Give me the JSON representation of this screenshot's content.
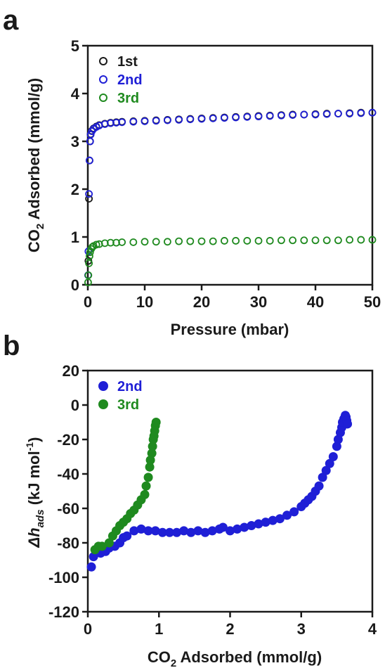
{
  "chart_data": [
    {
      "panel": "a",
      "type": "scatter",
      "xlabel": "Pressure (mbar)",
      "ylabel_main": "CO",
      "ylabel_sub": "2",
      "ylabel_rest": " Adsorbed (mmol/g)",
      "xlim": [
        0,
        50
      ],
      "ylim": [
        0,
        5
      ],
      "xticks": [
        "0",
        "10",
        "20",
        "30",
        "40",
        "50"
      ],
      "yticks": [
        "0",
        "1",
        "2",
        "3",
        "4",
        "5"
      ],
      "legend_position": "top-left",
      "marker": "open-circle",
      "series": [
        {
          "name": "1st",
          "color": "#1a1a1a",
          "points": [
            [
              0.1,
              0.5
            ],
            [
              0.2,
              1.8
            ],
            [
              0.3,
              2.6
            ],
            [
              0.4,
              3.0
            ],
            [
              0.5,
              3.15
            ],
            [
              0.7,
              3.22
            ],
            [
              1,
              3.27
            ],
            [
              1.5,
              3.31
            ],
            [
              2,
              3.34
            ],
            [
              3,
              3.37
            ],
            [
              4,
              3.39
            ],
            [
              5,
              3.4
            ],
            [
              6,
              3.41
            ],
            [
              8,
              3.42
            ],
            [
              10,
              3.43
            ],
            [
              12,
              3.44
            ],
            [
              14,
              3.45
            ],
            [
              16,
              3.46
            ],
            [
              18,
              3.47
            ],
            [
              20,
              3.48
            ],
            [
              22,
              3.49
            ],
            [
              24,
              3.5
            ],
            [
              26,
              3.51
            ],
            [
              28,
              3.52
            ],
            [
              30,
              3.53
            ],
            [
              32,
              3.54
            ],
            [
              34,
              3.55
            ],
            [
              36,
              3.56
            ],
            [
              38,
              3.56
            ],
            [
              40,
              3.57
            ],
            [
              42,
              3.58
            ],
            [
              44,
              3.58
            ],
            [
              46,
              3.59
            ],
            [
              48,
              3.6
            ],
            [
              50,
              3.6
            ]
          ]
        },
        {
          "name": "2nd",
          "color": "#1f1fd6",
          "points": [
            [
              0.05,
              0.2
            ],
            [
              0.1,
              0.7
            ],
            [
              0.2,
              1.9
            ],
            [
              0.3,
              2.6
            ],
            [
              0.4,
              3.0
            ],
            [
              0.5,
              3.14
            ],
            [
              0.7,
              3.21
            ],
            [
              1,
              3.26
            ],
            [
              1.5,
              3.3
            ],
            [
              2,
              3.33
            ],
            [
              3,
              3.36
            ],
            [
              4,
              3.38
            ],
            [
              5,
              3.39
            ],
            [
              6,
              3.4
            ],
            [
              8,
              3.41
            ],
            [
              10,
              3.42
            ],
            [
              12,
              3.43
            ],
            [
              14,
              3.44
            ],
            [
              16,
              3.45
            ],
            [
              18,
              3.46
            ],
            [
              20,
              3.47
            ],
            [
              22,
              3.48
            ],
            [
              24,
              3.49
            ],
            [
              26,
              3.5
            ],
            [
              28,
              3.51
            ],
            [
              30,
              3.52
            ],
            [
              32,
              3.53
            ],
            [
              34,
              3.54
            ],
            [
              36,
              3.55
            ],
            [
              38,
              3.56
            ],
            [
              40,
              3.56
            ],
            [
              42,
              3.57
            ],
            [
              44,
              3.58
            ],
            [
              46,
              3.58
            ],
            [
              48,
              3.59
            ],
            [
              50,
              3.6
            ]
          ]
        },
        {
          "name": "3rd",
          "color": "#1f8a1f",
          "points": [
            [
              0.05,
              0.05
            ],
            [
              0.1,
              0.2
            ],
            [
              0.2,
              0.45
            ],
            [
              0.3,
              0.6
            ],
            [
              0.4,
              0.68
            ],
            [
              0.6,
              0.75
            ],
            [
              0.8,
              0.79
            ],
            [
              1,
              0.81
            ],
            [
              1.5,
              0.84
            ],
            [
              2,
              0.85
            ],
            [
              3,
              0.87
            ],
            [
              4,
              0.88
            ],
            [
              5,
              0.88
            ],
            [
              6,
              0.89
            ],
            [
              8,
              0.89
            ],
            [
              10,
              0.9
            ],
            [
              12,
              0.9
            ],
            [
              14,
              0.9
            ],
            [
              16,
              0.91
            ],
            [
              18,
              0.91
            ],
            [
              20,
              0.91
            ],
            [
              22,
              0.91
            ],
            [
              24,
              0.92
            ],
            [
              26,
              0.92
            ],
            [
              28,
              0.92
            ],
            [
              30,
              0.92
            ],
            [
              32,
              0.92
            ],
            [
              34,
              0.93
            ],
            [
              36,
              0.93
            ],
            [
              38,
              0.93
            ],
            [
              40,
              0.93
            ],
            [
              42,
              0.93
            ],
            [
              44,
              0.93
            ],
            [
              46,
              0.94
            ],
            [
              48,
              0.94
            ],
            [
              50,
              0.94
            ]
          ]
        }
      ]
    },
    {
      "panel": "b",
      "type": "scatter",
      "xlabel_main": "CO",
      "xlabel_sub": "2",
      "xlabel_rest": " Adsorbed (mmol/g)",
      "ylabel_delta": "Δh",
      "ylabel_sub": "ads",
      "ylabel_rest": " (kJ mol",
      "ylabel_sup": "-1",
      "ylabel_end": ")",
      "xlim": [
        0,
        4
      ],
      "ylim": [
        -120,
        20
      ],
      "xticks": [
        "0",
        "1",
        "2",
        "3",
        "4"
      ],
      "yticks": [
        "-120",
        "-100",
        "-80",
        "-60",
        "-40",
        "-20",
        "0",
        "20"
      ],
      "legend_position": "top-left",
      "marker": "filled-circle",
      "series": [
        {
          "name": "2nd",
          "color": "#1f1fd6",
          "points": [
            [
              0.05,
              -94
            ],
            [
              0.08,
              -88
            ],
            [
              0.12,
              -85
            ],
            [
              0.18,
              -86
            ],
            [
              0.25,
              -85
            ],
            [
              0.3,
              -83
            ],
            [
              0.38,
              -82
            ],
            [
              0.45,
              -80
            ],
            [
              0.5,
              -77
            ],
            [
              0.55,
              -76
            ],
            [
              0.65,
              -73
            ],
            [
              0.75,
              -72
            ],
            [
              0.85,
              -73
            ],
            [
              0.95,
              -73
            ],
            [
              1.05,
              -74
            ],
            [
              1.15,
              -74
            ],
            [
              1.25,
              -74
            ],
            [
              1.35,
              -73
            ],
            [
              1.45,
              -74
            ],
            [
              1.55,
              -73
            ],
            [
              1.65,
              -74
            ],
            [
              1.75,
              -73
            ],
            [
              1.85,
              -72
            ],
            [
              1.9,
              -71
            ],
            [
              2.0,
              -73
            ],
            [
              2.1,
              -72
            ],
            [
              2.2,
              -71
            ],
            [
              2.3,
              -70
            ],
            [
              2.4,
              -69
            ],
            [
              2.5,
              -68
            ],
            [
              2.6,
              -67
            ],
            [
              2.7,
              -66
            ],
            [
              2.8,
              -64
            ],
            [
              2.9,
              -62
            ],
            [
              3.0,
              -59
            ],
            [
              3.05,
              -57
            ],
            [
              3.1,
              -55
            ],
            [
              3.15,
              -53
            ],
            [
              3.2,
              -50
            ],
            [
              3.25,
              -47
            ],
            [
              3.3,
              -42
            ],
            [
              3.35,
              -38
            ],
            [
              3.4,
              -34
            ],
            [
              3.45,
              -30
            ],
            [
              3.5,
              -24
            ],
            [
              3.52,
              -20
            ],
            [
              3.55,
              -16
            ],
            [
              3.57,
              -13
            ],
            [
              3.58,
              -10
            ],
            [
              3.6,
              -8
            ],
            [
              3.62,
              -6
            ],
            [
              3.63,
              -7
            ],
            [
              3.64,
              -9
            ],
            [
              3.65,
              -11
            ]
          ]
        },
        {
          "name": "3rd",
          "color": "#1f8a1f",
          "points": [
            [
              0.1,
              -84
            ],
            [
              0.15,
              -82
            ],
            [
              0.2,
              -82
            ],
            [
              0.3,
              -80
            ],
            [
              0.35,
              -76
            ],
            [
              0.4,
              -73
            ],
            [
              0.45,
              -70
            ],
            [
              0.5,
              -68
            ],
            [
              0.55,
              -66
            ],
            [
              0.6,
              -63
            ],
            [
              0.65,
              -61
            ],
            [
              0.7,
              -58
            ],
            [
              0.75,
              -55
            ],
            [
              0.8,
              -52
            ],
            [
              0.82,
              -47
            ],
            [
              0.85,
              -42
            ],
            [
              0.87,
              -36
            ],
            [
              0.88,
              -32
            ],
            [
              0.9,
              -28
            ],
            [
              0.91,
              -24
            ],
            [
              0.92,
              -20
            ],
            [
              0.93,
              -18
            ],
            [
              0.94,
              -15
            ],
            [
              0.95,
              -12
            ],
            [
              0.96,
              -10
            ]
          ]
        }
      ]
    }
  ],
  "panel_labels": {
    "a": "a",
    "b": "b"
  }
}
